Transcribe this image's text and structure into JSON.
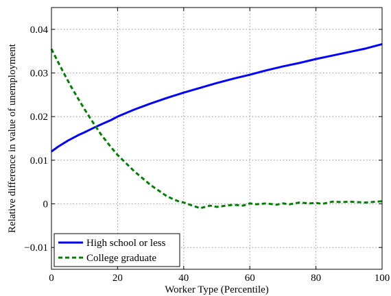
{
  "chart_data": {
    "type": "line",
    "title": "",
    "xlabel": "Worker Type (Percentile)",
    "ylabel": "Relative difference in value of unemployment",
    "xlim": [
      0,
      100
    ],
    "ylim": [
      -0.015,
      0.045
    ],
    "xticks": [
      0,
      20,
      40,
      60,
      80,
      100
    ],
    "xtick_labels": [
      "0",
      "20",
      "40",
      "60",
      "80",
      "100"
    ],
    "yticks": [
      -0.01,
      0,
      0.01,
      0.02,
      0.03,
      0.04
    ],
    "ytick_labels": [
      "−0.01",
      "0",
      "0.01",
      "0.02",
      "0.03",
      "0.04"
    ],
    "grid": true,
    "legend_position": "bottom-left",
    "series": [
      {
        "name": "High school or less",
        "color": "#0000ff",
        "style": "solid",
        "x": [
          0,
          2,
          5,
          8,
          10,
          13,
          15,
          18,
          20,
          25,
          30,
          35,
          40,
          45,
          50,
          55,
          60,
          65,
          70,
          75,
          80,
          85,
          90,
          95,
          100
        ],
        "y": [
          0.012,
          0.0131,
          0.0145,
          0.0157,
          0.0164,
          0.0175,
          0.0182,
          0.0192,
          0.02,
          0.0216,
          0.023,
          0.0243,
          0.0255,
          0.0266,
          0.0277,
          0.0287,
          0.0296,
          0.0306,
          0.0315,
          0.0323,
          0.0332,
          0.034,
          0.0348,
          0.0356,
          0.0366
        ]
      },
      {
        "name": "College graduate",
        "color": "#007f00",
        "style": "dashed",
        "x": [
          0,
          2,
          4,
          6,
          8,
          10,
          12,
          15,
          18,
          20,
          25,
          30,
          35,
          38,
          40,
          43,
          45,
          48,
          50,
          55,
          58,
          60,
          62,
          65,
          68,
          70,
          72,
          75,
          78,
          80,
          82,
          85,
          88,
          90,
          95,
          100
        ],
        "y": [
          0.0355,
          0.0325,
          0.0296,
          0.0268,
          0.0242,
          0.0217,
          0.0193,
          0.0159,
          0.013,
          0.0112,
          0.0075,
          0.0043,
          0.0017,
          0.0007,
          0.0003,
          -0.0005,
          -0.001,
          -0.0004,
          -0.0007,
          -0.0002,
          -0.0004,
          0.0001,
          -0.0001,
          0.0001,
          -0.0002,
          0.0001,
          -0.0001,
          0.0003,
          0.0001,
          0.0002,
          0.0,
          0.0005,
          0.0004,
          0.0005,
          0.0003,
          0.0006
        ]
      }
    ]
  }
}
